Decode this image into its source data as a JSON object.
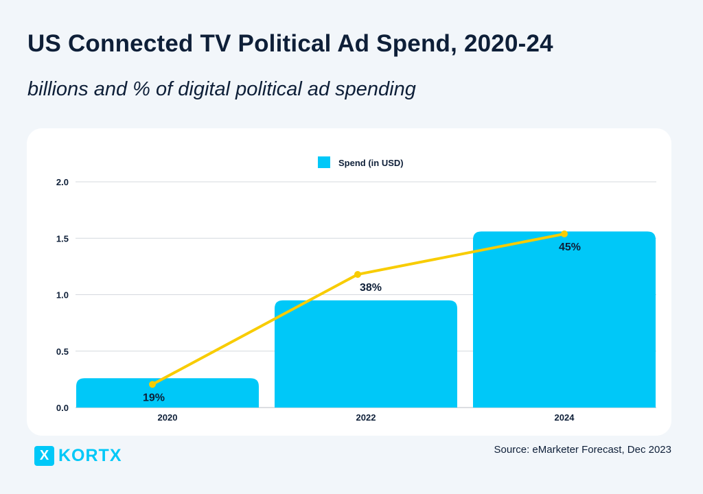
{
  "title": "US Connected TV Political Ad Spend, 2020-24",
  "subtitle": "billions and % of digital political ad spending",
  "source": "Source: eMarketer Forecast, Dec 2023",
  "logo": {
    "mark": "X",
    "text": "KORTX"
  },
  "colors": {
    "bar": "#00c8f8",
    "line": "#f8cc00",
    "text": "#0e1f38",
    "grid": "#d4d8de"
  },
  "chart_data": {
    "type": "bar",
    "categories": [
      "2020",
      "2022",
      "2024"
    ],
    "series": [
      {
        "name": "Spend (in USD)",
        "type": "bar",
        "values": [
          0.26,
          0.95,
          1.56
        ]
      },
      {
        "type": "line",
        "values": [
          19,
          38,
          45
        ],
        "labels": [
          "19%",
          "38%",
          "45%"
        ],
        "secondary_axis_hidden": true,
        "secondary_range": [
          15,
          54
        ]
      }
    ],
    "ylim": [
      0,
      2.0
    ],
    "yticks": [
      "0.0",
      "0.5",
      "1.0",
      "1.5",
      "2.0"
    ],
    "grid": true,
    "legend": "top-center"
  }
}
